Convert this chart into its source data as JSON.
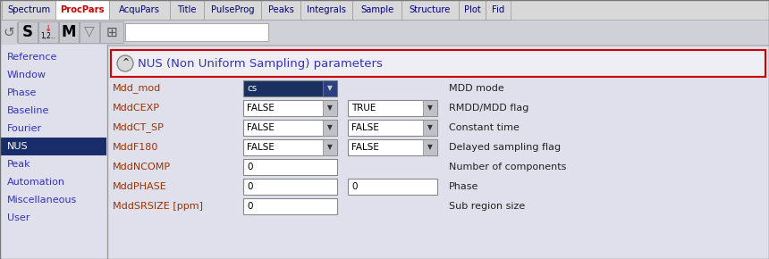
{
  "tab_labels": [
    "Spectrum",
    "ProcPars",
    "AcquPars",
    "Title",
    "PulseProg",
    "Peaks",
    "Integrals",
    "Sample",
    "Structure",
    "Plot",
    "Fid"
  ],
  "active_tab": "ProcPars",
  "sidebar_items": [
    "Reference",
    "Window",
    "Phase",
    "Baseline",
    "Fourier",
    "NUS",
    "Peak",
    "Automation",
    "Miscellaneous",
    "User"
  ],
  "active_sidebar": "NUS",
  "section_title": "NUS (Non Uniform Sampling) parameters",
  "params": [
    {
      "label": "Mdd_mod",
      "val1": "cs",
      "val1_dark": true,
      "has_dropdown1": true,
      "val2": null,
      "has_dropdown2": false,
      "desc": "MDD mode"
    },
    {
      "label": "MddCEXP",
      "val1": "FALSE",
      "val1_dark": false,
      "has_dropdown1": true,
      "val2": "TRUE",
      "has_dropdown2": true,
      "desc": "RMDD/MDD flag"
    },
    {
      "label": "MddCT_SP",
      "val1": "FALSE",
      "val1_dark": false,
      "has_dropdown1": true,
      "val2": "FALSE",
      "has_dropdown2": true,
      "desc": "Constant time"
    },
    {
      "label": "MddF180",
      "val1": "FALSE",
      "val1_dark": false,
      "has_dropdown1": true,
      "val2": "FALSE",
      "has_dropdown2": true,
      "desc": "Delayed sampling flag"
    },
    {
      "label": "MddNCOMP",
      "val1": "0",
      "val1_dark": false,
      "has_dropdown1": false,
      "val2": null,
      "has_dropdown2": false,
      "desc": "Number of components"
    },
    {
      "label": "MddPHASE",
      "val1": "0",
      "val1_dark": false,
      "has_dropdown1": false,
      "val2": "0",
      "has_dropdown2": false,
      "desc": "Phase"
    },
    {
      "label": "MddSRSIZE [ppm]",
      "val1": "0",
      "val1_dark": false,
      "has_dropdown1": false,
      "val2": null,
      "has_dropdown2": false,
      "desc": "Sub region size"
    }
  ],
  "colors": {
    "tab_bg": "#d8d8d8",
    "tab_active_text": "#cc0000",
    "tab_inactive_text": "#000080",
    "tab_border": "#999999",
    "toolbar_bg": "#d0d0d8",
    "sidebar_bg": "#e0e0ec",
    "sidebar_active_bg": "#1a2d6b",
    "sidebar_active_text": "#ffffff",
    "sidebar_text": "#3333bb",
    "main_bg": "#e0e0ec",
    "section_border": "#cc0000",
    "section_bg": "#eeeef4",
    "section_title_color": "#3333bb",
    "dropdown_bg": "#ffffff",
    "dropdown_dark_bg": "#1a3060",
    "dropdown_dark_text": "#ffffff",
    "dropdown_text": "#000000",
    "label_color": "#993300",
    "desc_color": "#222222",
    "dropdown_btn_bg": "#c0c0c8"
  },
  "fig_width": 8.6,
  "fig_height": 2.9,
  "dpi": 100
}
